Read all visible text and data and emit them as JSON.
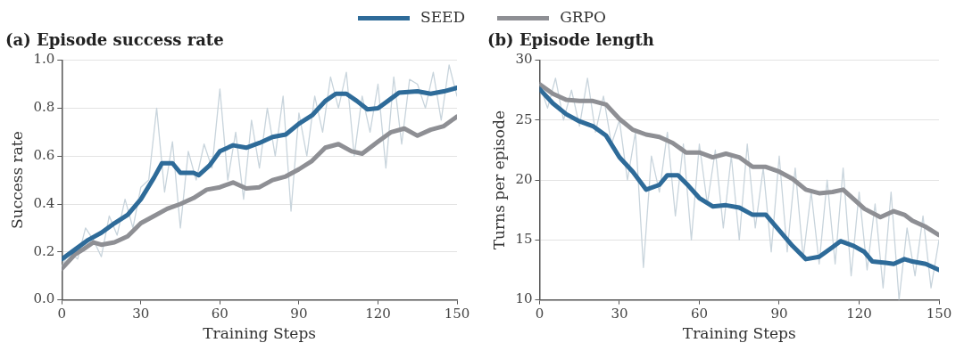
{
  "chart_data": [
    {
      "type": "line",
      "title": "(a) Episode success rate",
      "xlabel": "Training Steps",
      "ylabel": "Success rate",
      "xlim": [
        0,
        150
      ],
      "xticks": [
        0,
        30,
        60,
        90,
        120,
        150
      ],
      "ylim": [
        0,
        1
      ],
      "yticks": [
        {
          "value": 0,
          "label": "0.0"
        },
        0.2,
        0.4,
        0.6,
        0.8,
        {
          "value": 1,
          "label": "1.0"
        }
      ],
      "grid": "y",
      "legend": "top",
      "line_style": "solid",
      "series": [
        {
          "color": "#c8d4dc",
          "x": [
            0,
            3,
            6,
            9,
            12,
            15,
            18,
            21,
            24,
            27,
            30,
            33,
            36,
            39,
            42,
            45,
            48,
            51,
            54,
            57,
            60,
            63,
            66,
            69,
            72,
            75,
            78,
            81,
            84,
            87,
            90,
            93,
            96,
            99,
            102,
            105,
            108,
            111,
            114,
            117,
            120,
            123,
            126,
            129,
            132,
            135,
            138,
            141,
            144,
            147,
            150
          ],
          "values": [
            0.14,
            0.2,
            0.17,
            0.3,
            0.25,
            0.18,
            0.35,
            0.27,
            0.42,
            0.3,
            0.47,
            0.5,
            0.8,
            0.45,
            0.66,
            0.3,
            0.62,
            0.5,
            0.65,
            0.55,
            0.88,
            0.5,
            0.7,
            0.42,
            0.75,
            0.55,
            0.8,
            0.6,
            0.85,
            0.37,
            0.78,
            0.6,
            0.85,
            0.7,
            0.93,
            0.8,
            0.95,
            0.6,
            0.85,
            0.7,
            0.9,
            0.55,
            0.93,
            0.65,
            0.92,
            0.9,
            0.8,
            0.95,
            0.75,
            0.98,
            0.85
          ]
        },
        {
          "name": "SEED",
          "color": "#2e6b99",
          "x": [
            0,
            5,
            10,
            15,
            20,
            25,
            30,
            35,
            38,
            42,
            45,
            50,
            52,
            56,
            60,
            65,
            70,
            75,
            80,
            85,
            90,
            95,
            100,
            104,
            108,
            112,
            116,
            120,
            125,
            128,
            135,
            140,
            145,
            150
          ],
          "values": [
            0.17,
            0.21,
            0.25,
            0.28,
            0.32,
            0.355,
            0.42,
            0.51,
            0.57,
            0.57,
            0.53,
            0.53,
            0.52,
            0.56,
            0.62,
            0.645,
            0.635,
            0.655,
            0.68,
            0.69,
            0.735,
            0.77,
            0.83,
            0.86,
            0.86,
            0.83,
            0.795,
            0.8,
            0.84,
            0.865,
            0.87,
            0.86,
            0.87,
            0.885
          ]
        },
        {
          "name": "GRPO",
          "color": "#8e8f94",
          "x": [
            0,
            5,
            8,
            12,
            15,
            20,
            25,
            30,
            35,
            40,
            45,
            50,
            55,
            60,
            65,
            70,
            75,
            80,
            85,
            90,
            95,
            100,
            105,
            110,
            114,
            120,
            125,
            130,
            135,
            140,
            145,
            150
          ],
          "values": [
            0.13,
            0.19,
            0.21,
            0.24,
            0.23,
            0.24,
            0.265,
            0.32,
            0.35,
            0.38,
            0.4,
            0.425,
            0.46,
            0.47,
            0.49,
            0.465,
            0.47,
            0.5,
            0.515,
            0.545,
            0.58,
            0.635,
            0.65,
            0.62,
            0.61,
            0.66,
            0.7,
            0.715,
            0.685,
            0.71,
            0.725,
            0.765
          ]
        }
      ]
    },
    {
      "type": "line",
      "title": "(b) Episode length",
      "xlabel": "Training Steps",
      "ylabel": "Turns per episode",
      "xlim": [
        0,
        150
      ],
      "xticks": [
        0,
        30,
        60,
        90,
        120,
        150
      ],
      "ylim": [
        10,
        30
      ],
      "yticks": [
        10,
        15,
        20,
        25,
        30
      ],
      "grid": "y",
      "legend": "top",
      "line_style": "solid",
      "series": [
        {
          "color": "#c8d4dc",
          "x": [
            0,
            3,
            6,
            9,
            12,
            15,
            18,
            21,
            24,
            27,
            30,
            33,
            36,
            39,
            42,
            45,
            48,
            51,
            54,
            57,
            60,
            63,
            66,
            69,
            72,
            75,
            78,
            81,
            84,
            87,
            90,
            93,
            96,
            99,
            102,
            105,
            108,
            111,
            114,
            117,
            120,
            123,
            126,
            129,
            132,
            135,
            138,
            141,
            144,
            147,
            150
          ],
          "values": [
            28,
            26,
            28.5,
            25,
            27.5,
            24.5,
            28.5,
            24,
            27,
            23,
            25,
            20,
            24,
            12.7,
            22,
            19,
            24,
            17,
            23,
            15,
            23,
            18,
            22.5,
            16,
            22,
            15,
            23,
            16,
            21,
            14,
            22,
            14,
            21,
            13.5,
            19,
            13,
            20,
            13,
            21,
            12,
            19,
            12.5,
            18,
            11,
            19,
            10,
            16,
            12,
            17,
            11,
            15
          ]
        },
        {
          "name": "SEED",
          "color": "#2e6b99",
          "x": [
            0,
            5,
            10,
            15,
            20,
            25,
            30,
            35,
            40,
            45,
            48,
            52,
            56,
            60,
            65,
            70,
            75,
            80,
            85,
            90,
            95,
            100,
            105,
            110,
            113,
            118,
            122,
            125,
            130,
            133,
            137,
            140,
            145,
            150
          ],
          "values": [
            27.6,
            26.4,
            25.5,
            24.9,
            24.5,
            23.7,
            21.9,
            20.7,
            19.2,
            19.6,
            20.4,
            20.4,
            19.5,
            18.5,
            17.8,
            17.9,
            17.7,
            17.1,
            17.1,
            15.8,
            14.5,
            13.4,
            13.6,
            14.4,
            14.9,
            14.5,
            14,
            13.2,
            13.1,
            13,
            13.4,
            13.2,
            13,
            12.5
          ]
        },
        {
          "name": "GRPO",
          "color": "#8e8f94",
          "x": [
            0,
            5,
            10,
            15,
            20,
            25,
            30,
            35,
            40,
            45,
            50,
            55,
            60,
            65,
            70,
            75,
            80,
            85,
            90,
            95,
            100,
            105,
            110,
            114,
            118,
            122,
            128,
            133,
            137,
            140,
            145,
            150
          ],
          "values": [
            28,
            27.2,
            26.7,
            26.6,
            26.6,
            26.3,
            25.1,
            24.2,
            23.8,
            23.6,
            23.1,
            22.3,
            22.3,
            21.9,
            22.2,
            21.9,
            21.1,
            21.1,
            20.7,
            20.1,
            19.2,
            18.9,
            19,
            19.2,
            18.4,
            17.6,
            16.9,
            17.4,
            17.1,
            16.6,
            16.1,
            15.4
          ]
        }
      ]
    }
  ]
}
